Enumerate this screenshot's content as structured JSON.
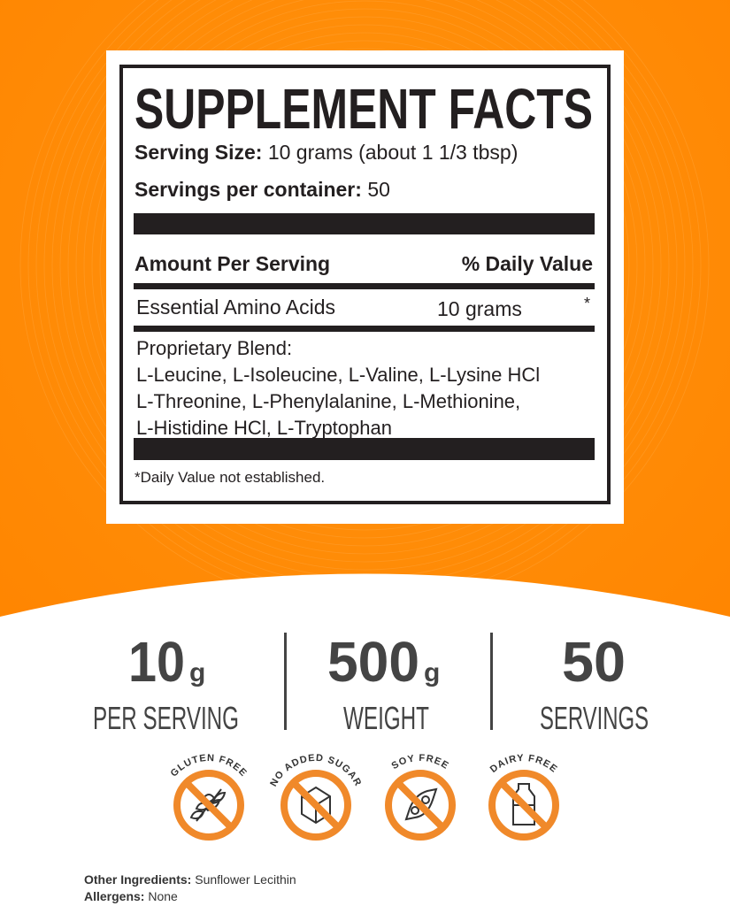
{
  "colors": {
    "orange": "#FF8A00",
    "badge": "#F0892A",
    "ink": "#231f20",
    "stat": "#444444"
  },
  "facts": {
    "title": "SUPPLEMENT FACTS",
    "serving_size_label": "Serving Size:",
    "serving_size_value": "10 grams (about 1 1/3 tbsp)",
    "servings_label": "Servings per container:",
    "servings_value": "50",
    "amount_header": "Amount Per Serving",
    "dv_header": "% Daily Value",
    "row_name": "Essential Amino Acids",
    "row_amount": "10 grams",
    "row_dv": "*",
    "blend_lines": [
      "Proprietary Blend:",
      "L-Leucine, L-Isoleucine, L-Valine, L-Lysine HCl",
      "L-Threonine, L-Phenylalanine, L-Methionine,",
      "L-Histidine HCl, L-Tryptophan"
    ],
    "footnote": "*Daily Value not established."
  },
  "stats": [
    {
      "value": "10",
      "unit": "g",
      "label": "PER SERVING"
    },
    {
      "value": "500",
      "unit": "g",
      "label": "WEIGHT"
    },
    {
      "value": "50",
      "unit": "",
      "label": "SERVINGS"
    }
  ],
  "badges": [
    {
      "label": "GLUTEN FREE",
      "icon": "wheat-icon"
    },
    {
      "label": "NO ADDED SUGAR",
      "icon": "sugar-cube-icon"
    },
    {
      "label": "SOY FREE",
      "icon": "soybean-icon"
    },
    {
      "label": "DAIRY FREE",
      "icon": "milk-bottle-icon"
    }
  ],
  "footer": {
    "ingredients_label": "Other Ingredients:",
    "ingredients_value": "Sunflower Lecithin",
    "allergens_label": "Allergens:",
    "allergens_value": "None"
  }
}
